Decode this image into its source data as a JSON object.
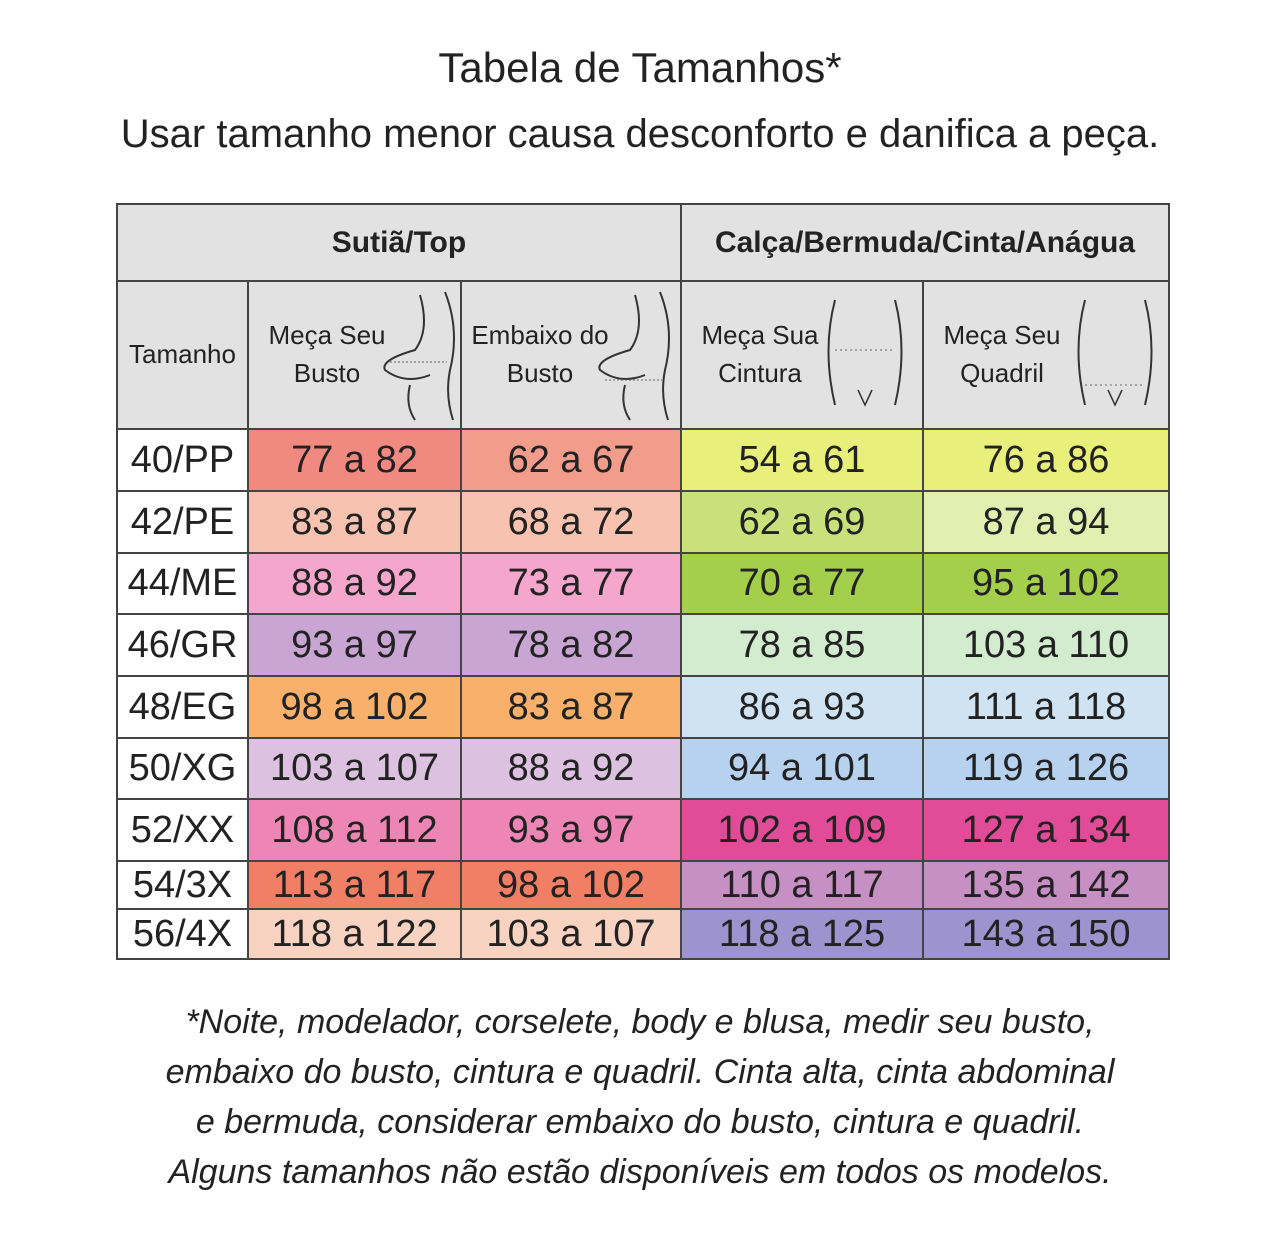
{
  "title": "Tabela de Tamanhos*",
  "subtitle": "Usar tamanho menor causa desconforto e danifica a peça.",
  "table": {
    "groups": [
      "Sutiã/Top",
      "Calça/Bermuda/Cinta/Anágua"
    ],
    "columns": [
      "Tamanho",
      "Meça Seu Busto",
      "Embaixo do Busto",
      "Meça Sua Cintura",
      "Meça Seu Quadril"
    ],
    "rows": [
      [
        "40/PP",
        "77 a 82",
        "62 a 67",
        "54 a 61",
        "76 a 86"
      ],
      [
        "42/PE",
        "83 a 87",
        "68 a 72",
        "62 a 69",
        "87 a 94"
      ],
      [
        "44/ME",
        "88 a 92",
        "73 a 77",
        "70 a 77",
        "95 a 102"
      ],
      [
        "46/GR",
        "93 a 97",
        "78 a 82",
        "78 a 85",
        "103 a 110"
      ],
      [
        "48/EG",
        "98 a 102",
        "83 a 87",
        "86 a 93",
        "111 a 118"
      ],
      [
        "50/XG",
        "103 a 107",
        "88 a 92",
        "94 a 101",
        "119 a 126"
      ],
      [
        "52/XX",
        "108 a 112",
        "93 a 97",
        "102 a 109",
        "127 a 134"
      ],
      [
        "54/3X",
        "113 a 117",
        "98 a 102",
        "110 a 117",
        "135 a 142"
      ],
      [
        "56/4X",
        "118 a 122",
        "103 a 107",
        "118 a 125",
        "143 a 150"
      ]
    ]
  },
  "footnote": [
    "*Noite, modelador, corselete, body e blusa, medir seu busto,",
    "embaixo do busto, cintura e quadril. Cinta alta, cinta abdominal",
    "e bermuda, considerar embaixo do busto, cintura e quadril.",
    "Alguns tamanhos não estão disponíveis em todos os modelos."
  ]
}
